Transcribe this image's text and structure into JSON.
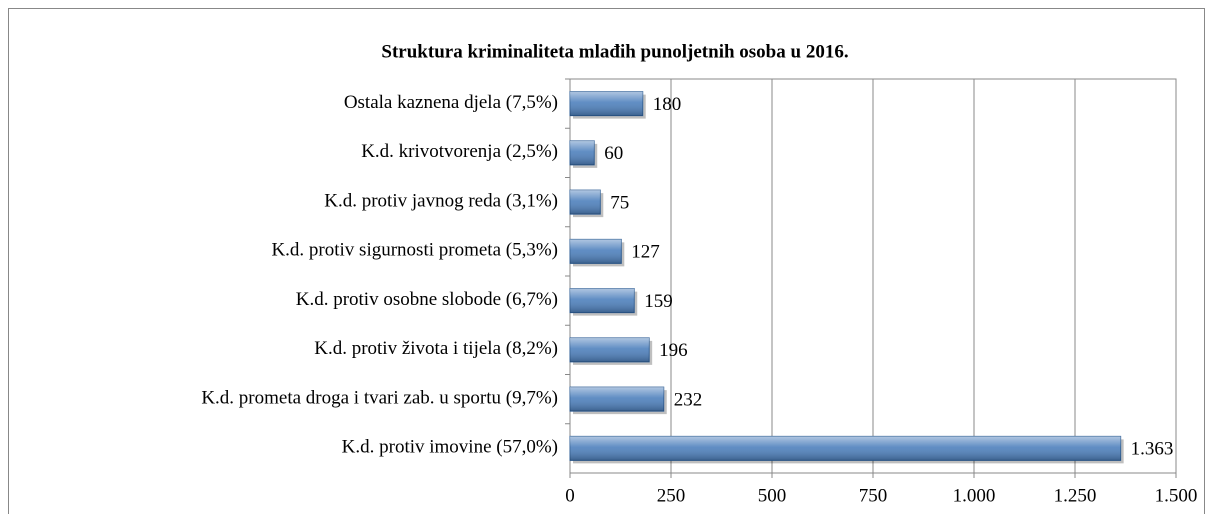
{
  "chart_data": {
    "type": "bar",
    "orientation": "horizontal",
    "title": "Struktura kriminaliteta mlađih punoljetnih osoba u 2016.",
    "categories": [
      "Ostala kaznena djela (7,5%)",
      "K.d. krivotvorenja (2,5%)",
      "K.d. protiv  javnog reda (3,1%)",
      "K.d. protiv sigurnosti prometa (5,3%)",
      "K.d. protiv osobne slobode (6,7%)",
      "K.d. protiv života i tijela (8,2%)",
      "K.d. prometa droga i tvari zab. u sportu (9,7%)",
      "K.d. protiv imovine (57,0%)"
    ],
    "values": [
      180,
      60,
      75,
      127,
      159,
      196,
      232,
      1363
    ],
    "value_labels": [
      "180",
      "60",
      "75",
      "127",
      "159",
      "196",
      "232",
      "1.363"
    ],
    "color": "#4f81bd",
    "xlim": [
      0,
      1500
    ],
    "xticks": [
      0,
      250,
      500,
      750,
      {
        "value": 1000,
        "label": "1.000"
      },
      {
        "value": 1250,
        "label": "1.250"
      },
      {
        "value": 1500,
        "label": "1.500"
      }
    ],
    "grid": true
  }
}
